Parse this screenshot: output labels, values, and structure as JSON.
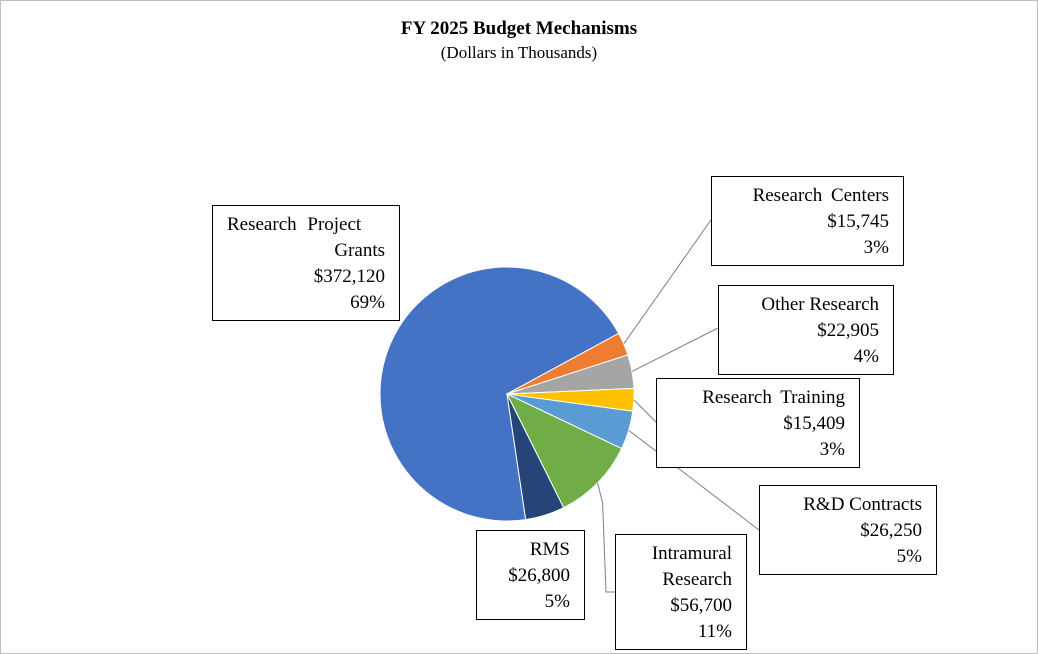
{
  "title": "FY 2025 Budget Mechanisms",
  "subtitle": "(Dollars in Thousands)",
  "chart_data": {
    "type": "pie",
    "title": "FY 2025 Budget Mechanisms",
    "subtitle": "(Dollars in Thousands)",
    "slices": [
      {
        "name": "Research Project Grants",
        "value": 372120,
        "value_label": "$372,120",
        "percent_label": "69%",
        "color": "#4472C4"
      },
      {
        "name": "Research Centers",
        "value": 15745,
        "value_label": "$15,745",
        "percent_label": "3%",
        "color": "#ED7D31"
      },
      {
        "name": "Other Research",
        "value": 22905,
        "value_label": "$22,905",
        "percent_label": "4%",
        "color": "#A5A5A5"
      },
      {
        "name": "Research Training",
        "value": 15409,
        "value_label": "$15,409",
        "percent_label": "3%",
        "color": "#FFC000"
      },
      {
        "name": "R&D Contracts",
        "value": 26250,
        "value_label": "$26,250",
        "percent_label": "5%",
        "color": "#5B9BD5"
      },
      {
        "name": "Intramural Research",
        "value": 56700,
        "value_label": "$56,700",
        "percent_label": "11%",
        "color": "#70AD47"
      },
      {
        "name": "RMS",
        "value": 26800,
        "value_label": "$26,800",
        "percent_label": "5%",
        "color": "#264478"
      }
    ]
  }
}
